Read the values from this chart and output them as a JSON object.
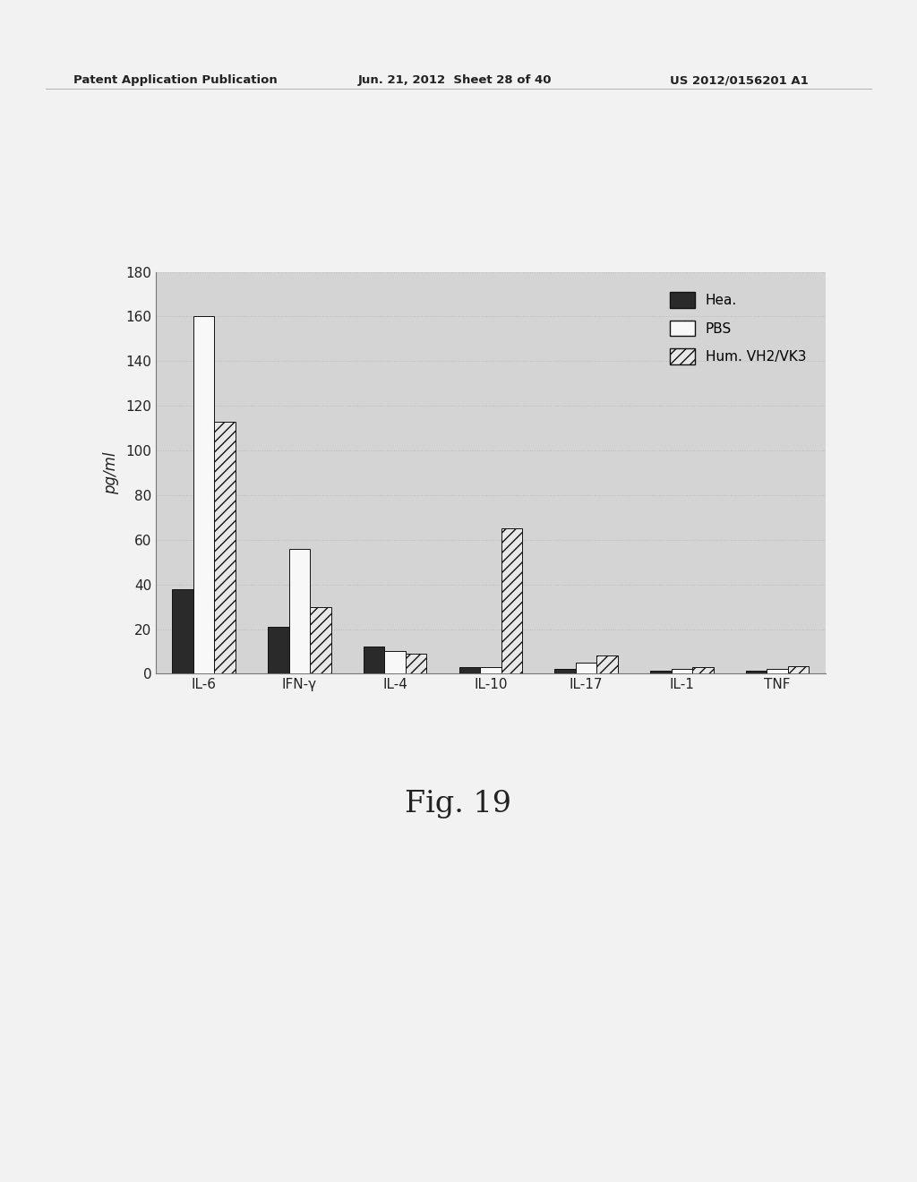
{
  "categories": [
    "IL-6",
    "IFN-γ",
    "IL-4",
    "IL-10",
    "IL-17",
    "IL-1",
    "TNF"
  ],
  "series": {
    "Hea.": [
      38,
      21,
      12,
      3,
      2,
      1.5,
      1.5
    ],
    "PBS": [
      160,
      56,
      10,
      3,
      5,
      2,
      2
    ],
    "Hum. VH2/VK3": [
      113,
      30,
      9,
      65,
      8,
      3,
      3.5
    ]
  },
  "ylabel": "pg/ml",
  "ylim": [
    0,
    180
  ],
  "yticks": [
    0,
    20,
    40,
    60,
    80,
    100,
    120,
    140,
    160,
    180
  ],
  "figure_caption": "Fig. 19",
  "background_color": "#e8e8e8",
  "page_color": "#f0f0f0",
  "plot_bg_color": "#d8d8d8",
  "grid_color": "#aaaaaa",
  "bar_width": 0.22,
  "legend_labels": [
    "Hea.",
    "PBS",
    "Hum. VH2/VK3"
  ],
  "header_left": "Patent Application Publication",
  "header_mid": "Jun. 21, 2012  Sheet 28 of 40",
  "header_right": "US 2012/0156201 A1"
}
